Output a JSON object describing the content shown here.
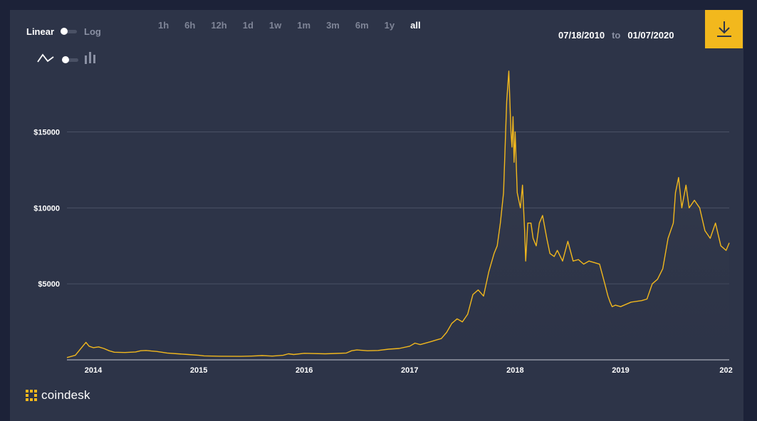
{
  "scale_toggle": {
    "left_label": "Linear",
    "right_label": "Log",
    "selected": "Linear"
  },
  "chart_type_toggle": {
    "left_icon": "line-chart-icon",
    "right_icon": "candlestick-icon",
    "selected": "line"
  },
  "time_ranges": [
    {
      "label": "1h",
      "active": false
    },
    {
      "label": "6h",
      "active": false
    },
    {
      "label": "12h",
      "active": false
    },
    {
      "label": "1d",
      "active": false
    },
    {
      "label": "1w",
      "active": false
    },
    {
      "label": "1m",
      "active": false
    },
    {
      "label": "3m",
      "active": false
    },
    {
      "label": "6m",
      "active": false
    },
    {
      "label": "1y",
      "active": false
    },
    {
      "label": "all",
      "active": true
    }
  ],
  "date_range": {
    "start": "07/18/2010",
    "separator": "to",
    "end": "01/07/2020"
  },
  "download_button": {
    "icon": "download-icon",
    "color": "#f2b81d"
  },
  "brand": {
    "name": "coindesk",
    "logo_color": "#f2b81d"
  },
  "chart_data": {
    "type": "area",
    "title": "",
    "xlabel": "",
    "ylabel": "",
    "x_ticks": [
      "2014",
      "2015",
      "2016",
      "2017",
      "2018",
      "2019",
      "202"
    ],
    "y_ticks": [
      "$5000",
      "$10000",
      "$15000"
    ],
    "xlim": [
      2013.75,
      2020.03
    ],
    "ylim": [
      0,
      19000
    ],
    "grid": true,
    "line_color": "#f2b81d",
    "series": [
      {
        "x": [
          2013.75,
          2013.83,
          2013.9,
          2013.93,
          2013.96,
          2014.0,
          2014.05,
          2014.1,
          2014.15,
          2014.2,
          2014.3,
          2014.4,
          2014.45,
          2014.5,
          2014.55,
          2014.6,
          2014.7,
          2014.8,
          2014.9,
          2015.0,
          2015.05,
          2015.2,
          2015.4,
          2015.5,
          2015.6,
          2015.7,
          2015.8,
          2015.85,
          2015.9,
          2016.0,
          2016.2,
          2016.3,
          2016.4,
          2016.45,
          2016.5,
          2016.6,
          2016.7,
          2016.8,
          2016.9,
          2017.0,
          2017.05,
          2017.1,
          2017.2,
          2017.25,
          2017.3,
          2017.35,
          2017.4,
          2017.45,
          2017.5,
          2017.55,
          2017.6,
          2017.65,
          2017.7,
          2017.75,
          2017.8,
          2017.83,
          2017.86,
          2017.89,
          2017.92,
          2017.94,
          2017.96,
          2017.97,
          2017.98,
          2017.99,
          2018.0,
          2018.02,
          2018.05,
          2018.07,
          2018.09,
          2018.1,
          2018.12,
          2018.15,
          2018.17,
          2018.2,
          2018.23,
          2018.26,
          2018.3,
          2018.33,
          2018.37,
          2018.4,
          2018.45,
          2018.5,
          2018.55,
          2018.6,
          2018.65,
          2018.7,
          2018.75,
          2018.8,
          2018.85,
          2018.88,
          2018.9,
          2018.92,
          2018.95,
          2019.0,
          2019.1,
          2019.2,
          2019.25,
          2019.3,
          2019.35,
          2019.4,
          2019.45,
          2019.5,
          2019.52,
          2019.55,
          2019.58,
          2019.62,
          2019.65,
          2019.7,
          2019.75,
          2019.8,
          2019.85,
          2019.9,
          2019.95,
          2020.0,
          2020.03
        ],
        "y": [
          150,
          300,
          900,
          1150,
          900,
          800,
          850,
          750,
          600,
          500,
          480,
          520,
          600,
          620,
          580,
          550,
          450,
          400,
          350,
          300,
          260,
          240,
          230,
          250,
          280,
          250,
          300,
          400,
          350,
          430,
          400,
          420,
          450,
          600,
          650,
          600,
          620,
          700,
          750,
          900,
          1100,
          1000,
          1200,
          1300,
          1400,
          1800,
          2400,
          2700,
          2500,
          3000,
          4300,
          4600,
          4200,
          5800,
          7000,
          7500,
          9000,
          11000,
          17000,
          19000,
          15000,
          14000,
          16000,
          13000,
          15000,
          11000,
          10000,
          11500,
          8500,
          6500,
          9000,
          9000,
          8000,
          7500,
          9000,
          9500,
          8000,
          7000,
          6800,
          7200,
          6500,
          7800,
          6500,
          6600,
          6300,
          6500,
          6400,
          6300,
          5000,
          4200,
          3800,
          3500,
          3600,
          3500,
          3800,
          3900,
          4000,
          5000,
          5300,
          6000,
          8000,
          9000,
          11000,
          12000,
          10000,
          11500,
          10000,
          10500,
          10000,
          8500,
          8000,
          9000,
          7500,
          7200,
          7700
        ]
      }
    ]
  }
}
